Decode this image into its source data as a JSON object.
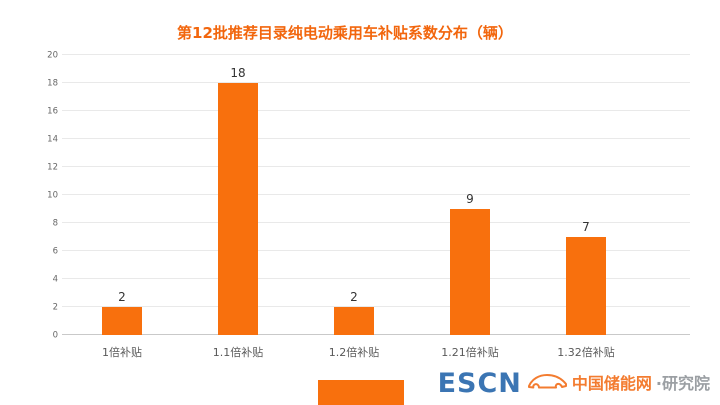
{
  "chart_data": {
    "type": "bar",
    "title": "第12批推荐目录纯电动乘用车补贴系数分布（辆）",
    "categories": [
      "1倍补贴",
      "1.1倍补贴",
      "1.2倍补贴",
      "1.21倍补贴",
      "1.32倍补贴"
    ],
    "values": [
      2,
      18,
      2,
      9,
      7
    ],
    "xlabel": "",
    "ylabel": "",
    "ylim": [
      0,
      20
    ],
    "ytick_step": 2,
    "grid": true,
    "legend": "none",
    "bar_color": "#f8700d",
    "value_label_color": "#333333",
    "axis_text_color": "#666666"
  },
  "watermark": {
    "escn": "ESCN",
    "brand_orange": "中国储能网",
    "brand_gray": "·研究院"
  },
  "colors": {
    "orange": "#f8700d",
    "title_orange": "#f2660d",
    "escn_blue": "#1a5da6",
    "gridline": "#e9e9e9"
  }
}
